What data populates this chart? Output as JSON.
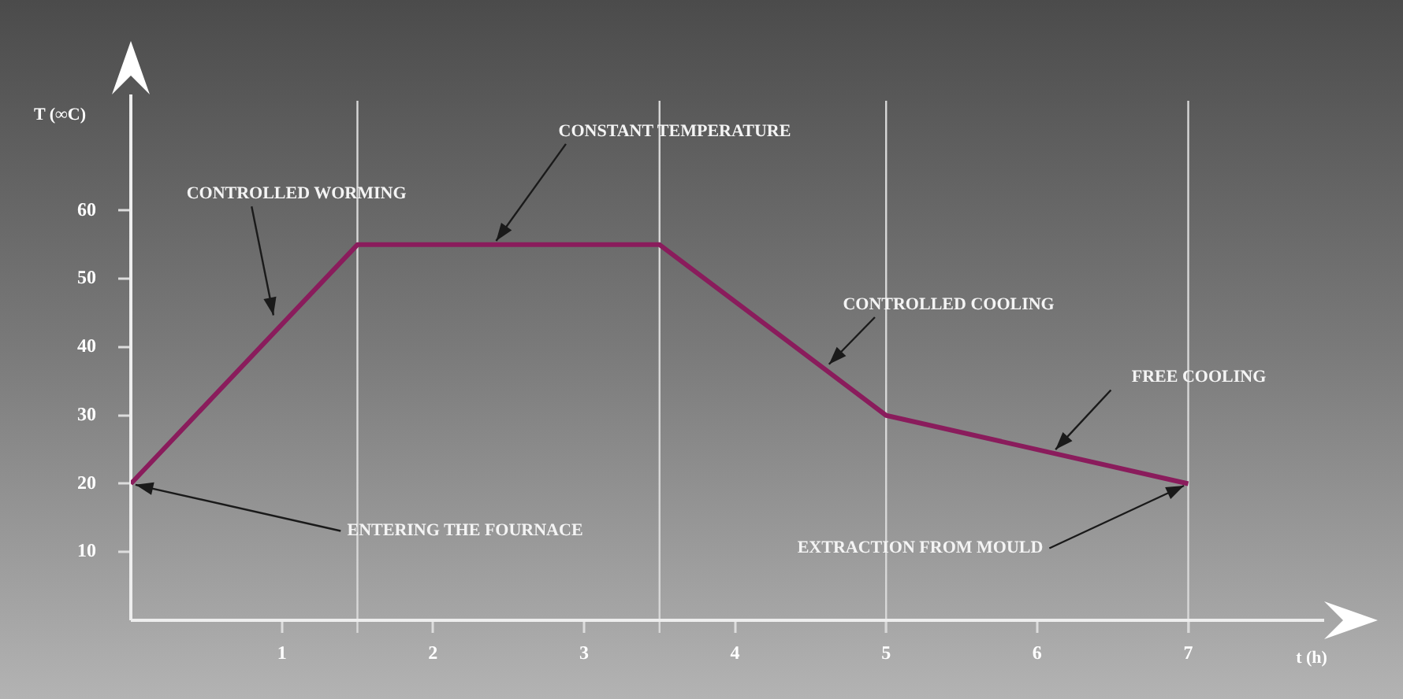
{
  "chart_data": {
    "type": "line",
    "xlabel": "t (h)",
    "ylabel": "T (∞C)",
    "x": [
      0,
      1.5,
      3.5,
      5,
      7
    ],
    "series": [
      {
        "color": "#8a1c5c",
        "values": [
          20,
          55,
          55,
          30,
          20
        ]
      }
    ],
    "xlim": [
      0,
      7.9
    ],
    "ylim": [
      0,
      77
    ],
    "xticks": [
      1,
      2,
      3,
      4,
      5,
      6,
      7
    ],
    "yticks": [
      10,
      20,
      30,
      40,
      50,
      60
    ],
    "grid": false,
    "legend": false,
    "ref_lines": [
      {
        "axis": "x",
        "value": 1.5,
        "color": "#d8d8d8"
      },
      {
        "axis": "x",
        "value": 3.5,
        "color": "#d8d8d8"
      },
      {
        "axis": "x",
        "value": 5,
        "color": "#d8d8d8"
      },
      {
        "axis": "x",
        "value": 7,
        "color": "#d8d8d8"
      }
    ],
    "annotations": [
      {
        "text": "CONTROLLED WORMING",
        "x": 0.95,
        "y": 44
      },
      {
        "text": "CONSTANT TEMPERATURE",
        "x": 2.4,
        "y": 55
      },
      {
        "text": "CONTROLLED COOLING",
        "x": 4.6,
        "y": 37
      },
      {
        "text": "FREE COOLING",
        "x": 6.1,
        "y": 24.5
      },
      {
        "text": "ENTERING THE FOURNACE",
        "x": 0,
        "y": 20
      },
      {
        "text": "EXTRACTION FROM MOULD",
        "x": 7,
        "y": 20
      }
    ]
  }
}
